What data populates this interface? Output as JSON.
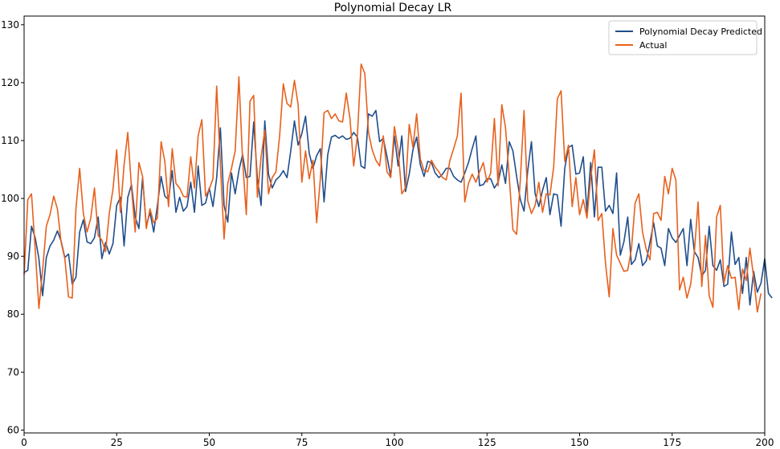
{
  "chart_data": {
    "type": "line",
    "title": "Polynomial Decay LR",
    "xlabel": "",
    "ylabel": "",
    "xlim": [
      0,
      200
    ],
    "ylim": [
      59.5,
      131.5
    ],
    "x_ticks": [
      0,
      25,
      50,
      75,
      100,
      125,
      150,
      175,
      200
    ],
    "y_ticks": [
      60,
      70,
      80,
      90,
      100,
      110,
      120,
      130
    ],
    "grid": false,
    "legend_position": "top-right",
    "series": [
      {
        "name": "Polynomial Decay Predicted",
        "color": "#1f4e8c",
        "values": [
          87.2,
          87.6,
          95.2,
          93.2,
          89.6,
          83.2,
          89.8,
          91.8,
          92.8,
          94.4,
          92.6,
          89.8,
          90.4,
          85.2,
          86.4,
          94.2,
          96.3,
          92.5,
          92.2,
          93.2,
          96.8,
          89.6,
          92.4,
          90.4,
          92.2,
          98.8,
          100.2,
          91.8,
          100.2,
          102.4,
          96.8,
          94.8,
          103.6,
          95.2,
          97.6,
          94.2,
          98.8,
          103.8,
          100.4,
          99.8,
          104.8,
          97.6,
          100.2,
          97.8,
          98.6,
          102.8,
          97.6,
          105.6,
          98.8,
          99.2,
          101.8,
          98.6,
          103.6,
          112.2,
          98.8,
          95.9,
          104.4,
          100.8,
          104.8,
          107.6,
          103.6,
          103.8,
          113.2,
          103.4,
          98.8,
          113.4,
          104.2,
          101.8,
          103.2,
          103.8,
          104.8,
          103.6,
          108.2,
          113.4,
          109.2,
          111.2,
          114.2,
          107.8,
          105.2,
          107.4,
          108.6,
          99.4,
          107.6,
          110.6,
          110.9,
          110.4,
          110.8,
          110.2,
          110.4,
          111.4,
          110.6,
          105.6,
          105.2,
          114.6,
          114.2,
          115.2,
          109.8,
          110.4,
          107.2,
          103.8,
          110.8,
          105.6,
          110.8,
          101.2,
          104.2,
          108.4,
          110.6,
          105.8,
          103.8,
          106.4,
          106.2,
          104.4,
          103.6,
          104.2,
          105.2,
          105.2,
          103.8,
          103.2,
          102.8,
          104.4,
          106.2,
          108.6,
          110.8,
          102.2,
          102.4,
          103.4,
          103.4,
          101.8,
          102.8,
          105.8,
          102.6,
          109.8,
          108.2,
          103.8,
          99.8,
          97.8,
          104.8,
          109.8,
          100.8,
          98.6,
          101.4,
          103.6,
          97.2,
          100.8,
          100.6,
          95.2,
          105.2,
          108.8,
          109.2,
          104.2,
          104.4,
          107.2,
          97.6,
          106.2,
          96.8,
          105.4,
          105.4,
          97.8,
          98.8,
          97.4,
          104.4,
          90.2,
          92.6,
          96.8,
          88.6,
          89.4,
          92.2,
          88.4,
          89.2,
          92.4,
          95.8,
          91.8,
          91.4,
          88.4,
          94.8,
          93.2,
          92.4,
          93.6,
          94.8,
          88.4,
          96.4,
          90.8,
          89.8,
          86.6,
          87.6,
          95.2,
          88.4,
          87.6,
          89.4,
          84.8,
          85.2,
          94.2,
          88.6,
          89.8,
          83.6,
          89.8,
          81.6,
          87.4,
          83.8,
          85.4,
          89.6,
          83.6,
          82.8
        ]
      },
      {
        "name": "Actual",
        "color": "#e8601c",
        "values": [
          86.8,
          99.8,
          100.8,
          91.2,
          81.0,
          87.6,
          95.2,
          97.2,
          100.4,
          98.2,
          92.4,
          89.6,
          83.0,
          82.8,
          98.2,
          105.2,
          97.4,
          94.2,
          96.6,
          101.8,
          93.6,
          92.8,
          90.8,
          97.4,
          101.6,
          108.4,
          97.6,
          105.8,
          111.4,
          101.8,
          94.2,
          106.2,
          103.8,
          94.8,
          98.2,
          95.8,
          96.6,
          109.8,
          106.4,
          98.6,
          108.6,
          102.6,
          101.8,
          100.4,
          100.2,
          107.2,
          101.8,
          110.8,
          113.6,
          100.4,
          101.6,
          103.4,
          119.4,
          105.8,
          93.0,
          102.6,
          105.2,
          108.2,
          121.0,
          106.6,
          97.2,
          116.8,
          117.8,
          100.2,
          107.2,
          111.8,
          100.8,
          103.6,
          104.6,
          110.8,
          119.8,
          116.4,
          115.8,
          120.4,
          116.2,
          102.8,
          108.2,
          103.4,
          106.6,
          95.8,
          103.4,
          114.8,
          115.2,
          113.8,
          114.6,
          113.4,
          113.2,
          118.2,
          113.8,
          105.6,
          110.8,
          123.2,
          121.6,
          111.4,
          108.4,
          106.6,
          105.6,
          110.8,
          104.6,
          103.6,
          112.4,
          108.4,
          100.8,
          101.8,
          112.8,
          108.8,
          114.6,
          106.8,
          104.8,
          104.6,
          106.6,
          105.4,
          104.6,
          103.6,
          103.2,
          106.6,
          108.6,
          110.8,
          118.2,
          99.4,
          102.6,
          104.2,
          102.8,
          104.6,
          106.2,
          102.8,
          104.4,
          113.8,
          102.2,
          116.2,
          112.2,
          103.8,
          94.6,
          93.8,
          103.2,
          115.2,
          99.6,
          97.4,
          98.8,
          102.8,
          97.6,
          100.8,
          100.6,
          105.4,
          117.2,
          118.6,
          106.4,
          109.2,
          98.6,
          103.6,
          97.2,
          99.8,
          96.6,
          103.6,
          108.4,
          96.2,
          97.4,
          88.8,
          83.0,
          94.8,
          90.2,
          88.8,
          87.4,
          87.6,
          91.2,
          99.2,
          100.8,
          94.2,
          91.2,
          89.4,
          97.4,
          97.6,
          96.2,
          103.8,
          100.8,
          105.2,
          103.2,
          84.2,
          86.4,
          82.8,
          85.2,
          90.8,
          99.4,
          84.8,
          93.6,
          83.2,
          81.2,
          96.8,
          98.8,
          85.4,
          88.4,
          86.2,
          86.4,
          80.8,
          87.8,
          85.8,
          91.4,
          86.4,
          80.4,
          83.6
        ]
      }
    ]
  }
}
